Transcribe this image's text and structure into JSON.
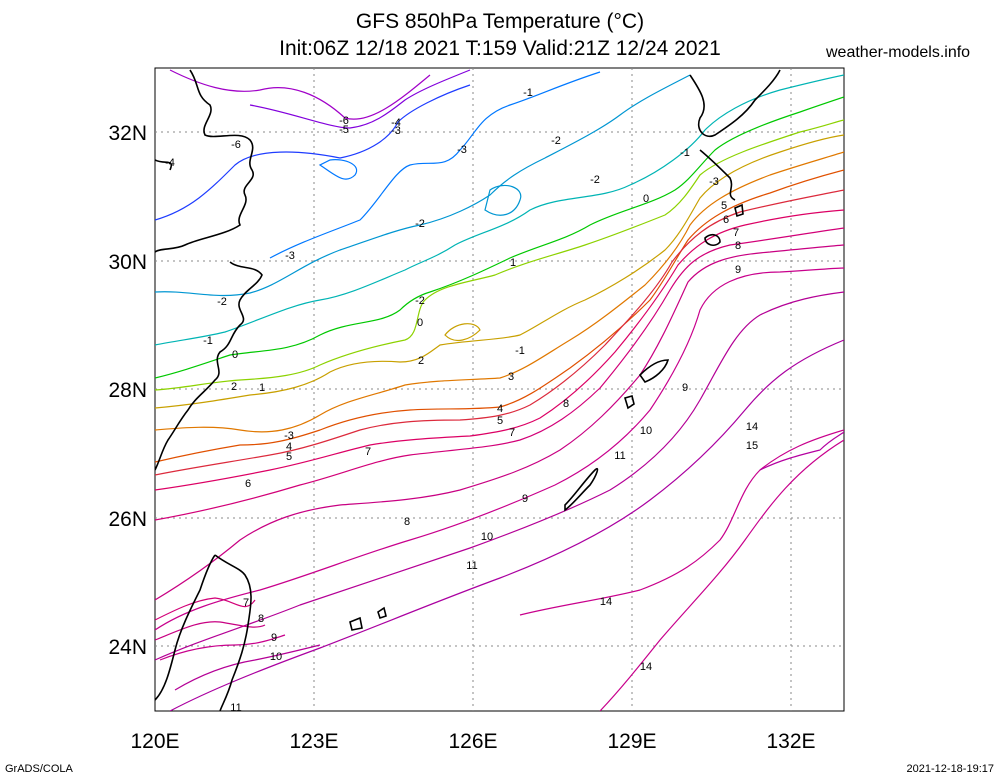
{
  "header": {
    "title_line1": "GFS 850hPa Temperature (°C)",
    "title_line2": "Init:06Z 12/18 2021 T:159 Valid:21Z 12/24 2021",
    "site": "weather-models.info"
  },
  "footer": {
    "left": "GrADS/COLA",
    "right": "2021-12-18-19:17"
  },
  "axes": {
    "lon_labels": [
      "120E",
      "123E",
      "126E",
      "129E",
      "132E"
    ],
    "lat_labels": [
      "32N",
      "30N",
      "28N",
      "26N",
      "24N"
    ]
  },
  "contour_labels": [
    {
      "text": "-1"
    },
    {
      "text": "-6"
    },
    {
      "text": "-5"
    },
    {
      "text": "-4"
    },
    {
      "text": "-3"
    },
    {
      "text": "-2"
    },
    {
      "text": "-3"
    },
    {
      "text": "-2"
    },
    {
      "text": "-1"
    },
    {
      "text": "-6"
    },
    {
      "text": "-4"
    },
    {
      "text": "-3"
    },
    {
      "text": "-2"
    },
    {
      "text": "0"
    },
    {
      "text": "-3"
    },
    {
      "text": "-2"
    },
    {
      "text": "1"
    },
    {
      "text": "-2"
    },
    {
      "text": "-1"
    },
    {
      "text": "0"
    },
    {
      "text": "-1"
    },
    {
      "text": "0"
    },
    {
      "text": "1"
    },
    {
      "text": "2"
    },
    {
      "text": "2"
    },
    {
      "text": "3"
    },
    {
      "text": "4"
    },
    {
      "text": "5"
    },
    {
      "text": "7"
    },
    {
      "text": "8"
    },
    {
      "text": "5"
    },
    {
      "text": "6"
    },
    {
      "text": "7"
    },
    {
      "text": "8"
    },
    {
      "text": "9"
    },
    {
      "text": "-3"
    },
    {
      "text": "4"
    },
    {
      "text": "5"
    },
    {
      "text": "7"
    },
    {
      "text": "6"
    },
    {
      "text": "9"
    },
    {
      "text": "10"
    },
    {
      "text": "11"
    },
    {
      "text": "9"
    },
    {
      "text": "14"
    },
    {
      "text": "15"
    },
    {
      "text": "8"
    },
    {
      "text": "10"
    },
    {
      "text": "11"
    },
    {
      "text": "14"
    },
    {
      "text": "7"
    },
    {
      "text": "8"
    },
    {
      "text": "9"
    },
    {
      "text": "10"
    },
    {
      "text": "11"
    },
    {
      "text": "14"
    }
  ],
  "colors": {
    "minus6": "#a000c8",
    "minus5": "#8200dc",
    "minus4": "#1e3cff",
    "minus3": "#0078ff",
    "minus2": "#0096d2",
    "minus1": "#00b4b4",
    "zero": "#00c800",
    "plus1": "#8cd200",
    "plus2": "#c8a000",
    "plus3": "#e07800",
    "plus4": "#e05000",
    "warm": "#dc0064",
    "hot": "#c8008c",
    "coast": "#000000",
    "grid": "#888888"
  }
}
